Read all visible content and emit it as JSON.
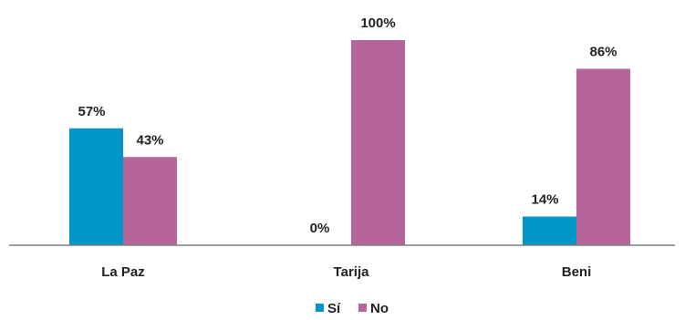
{
  "chart_data": {
    "type": "bar",
    "categories": [
      "La Paz",
      "Tarija",
      "Beni"
    ],
    "series": [
      {
        "name": "Sí",
        "color": "#0096c7",
        "values": [
          57,
          0,
          14
        ],
        "labels": [
          "57%",
          "0%",
          "14%"
        ]
      },
      {
        "name": "No",
        "color": "#b5659b",
        "values": [
          43,
          100,
          86
        ],
        "labels": [
          "43%",
          "100%",
          "86%"
        ]
      }
    ],
    "ylim": [
      0,
      100
    ],
    "grid": false,
    "legend": "bottom-center"
  }
}
